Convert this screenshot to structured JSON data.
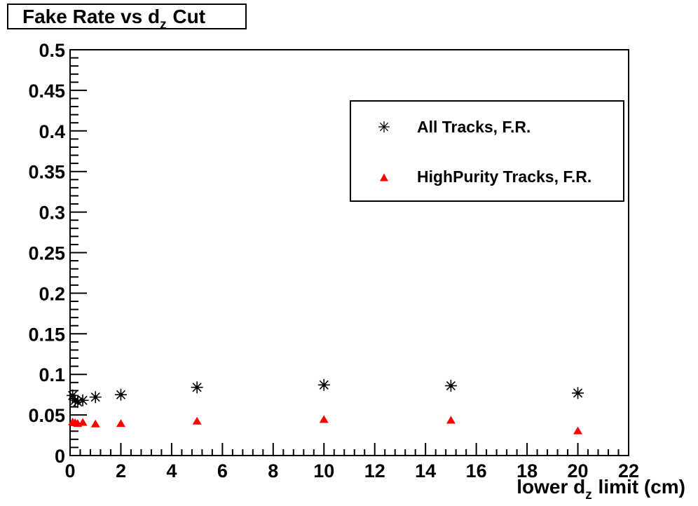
{
  "title": {
    "prefix": "Fake Rate vs d",
    "subscript": "z",
    "suffix": " Cut"
  },
  "x_axis": {
    "title_prefix": "lower d",
    "title_subscript": "z",
    "title_suffix": " limit (cm)",
    "min": 0,
    "max": 22,
    "major_step": 2,
    "minor_divisions": 5,
    "tick_labels": [
      "0",
      "2",
      "4",
      "6",
      "8",
      "10",
      "12",
      "14",
      "16",
      "18",
      "20",
      "22"
    ]
  },
  "y_axis": {
    "min": 0,
    "max": 0.5,
    "major_step": 0.05,
    "minor_divisions": 5,
    "tick_labels": [
      "0",
      "0.05",
      "0.1",
      "0.15",
      "0.2",
      "0.25",
      "0.3",
      "0.35",
      "0.4",
      "0.45",
      "0.5"
    ]
  },
  "legend": {
    "entries": [
      {
        "marker": "star",
        "color": "#000000",
        "label": "All Tracks, F.R."
      },
      {
        "marker": "triangle",
        "color": "#ff0000",
        "label": "HighPurity Tracks, F.R."
      }
    ]
  },
  "colors": {
    "axis": "#000000",
    "series1": "#000000",
    "series2": "#ff0000",
    "background": "#ffffff"
  },
  "chart_data": {
    "type": "scatter",
    "title": "Fake Rate vs d_z Cut",
    "xlabel": "lower d_z limit (cm)",
    "ylabel": "",
    "xlim": [
      0,
      22
    ],
    "ylim": [
      0,
      0.5
    ],
    "grid": false,
    "legend_position": "upper right",
    "series": [
      {
        "name": "All Tracks, F.R.",
        "marker": "star",
        "color": "#000000",
        "points": [
          [
            0.1,
            0.074
          ],
          [
            0.2,
            0.068
          ],
          [
            0.3,
            0.066
          ],
          [
            0.5,
            0.068
          ],
          [
            1,
            0.072
          ],
          [
            2,
            0.075
          ],
          [
            5,
            0.084
          ],
          [
            10,
            0.087
          ],
          [
            15,
            0.086
          ],
          [
            20,
            0.077
          ]
        ]
      },
      {
        "name": "HighPurity Tracks, F.R.",
        "marker": "triangle",
        "color": "#ff0000",
        "points": [
          [
            0.1,
            0.042
          ],
          [
            0.2,
            0.041
          ],
          [
            0.3,
            0.04
          ],
          [
            0.5,
            0.0415
          ],
          [
            1,
            0.0395
          ],
          [
            2,
            0.04
          ],
          [
            5,
            0.043
          ],
          [
            10,
            0.045
          ],
          [
            15,
            0.044
          ],
          [
            20,
            0.031
          ]
        ]
      }
    ]
  }
}
